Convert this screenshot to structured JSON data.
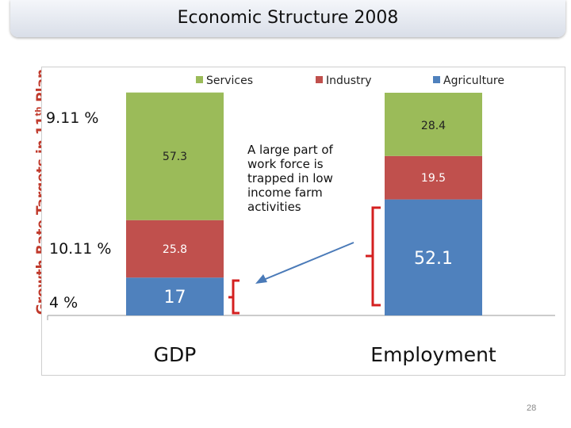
{
  "header": {
    "title": "Economic Structure 2008"
  },
  "side_label": "Growth Rate Targets in 11th Plan",
  "growth_targets": {
    "services": "9.11 %",
    "industry": "10.11 %",
    "agriculture": "4 %"
  },
  "callout": "A large part of work force is trapped in low income farm activities",
  "page_number": "28",
  "colors": {
    "services": "#9bbb59",
    "industry": "#c0504d",
    "agriculture": "#4f81bd",
    "bracket": "#d42020",
    "arrow": "#4a7ab8"
  },
  "chart_data": {
    "type": "bar",
    "stacked": true,
    "categories": [
      "GDP",
      "Employment"
    ],
    "series": [
      {
        "name": "Agriculture",
        "values": [
          17,
          52.1
        ]
      },
      {
        "name": "Industry",
        "values": [
          25.8,
          19.5
        ]
      },
      {
        "name": "Services",
        "values": [
          57.3,
          28.4
        ]
      }
    ],
    "legend_order": [
      "Services",
      "Industry",
      "Agriculture"
    ],
    "legend_position": "top",
    "ylim": [
      0,
      100
    ],
    "title": "",
    "xlabel": "",
    "ylabel": ""
  }
}
